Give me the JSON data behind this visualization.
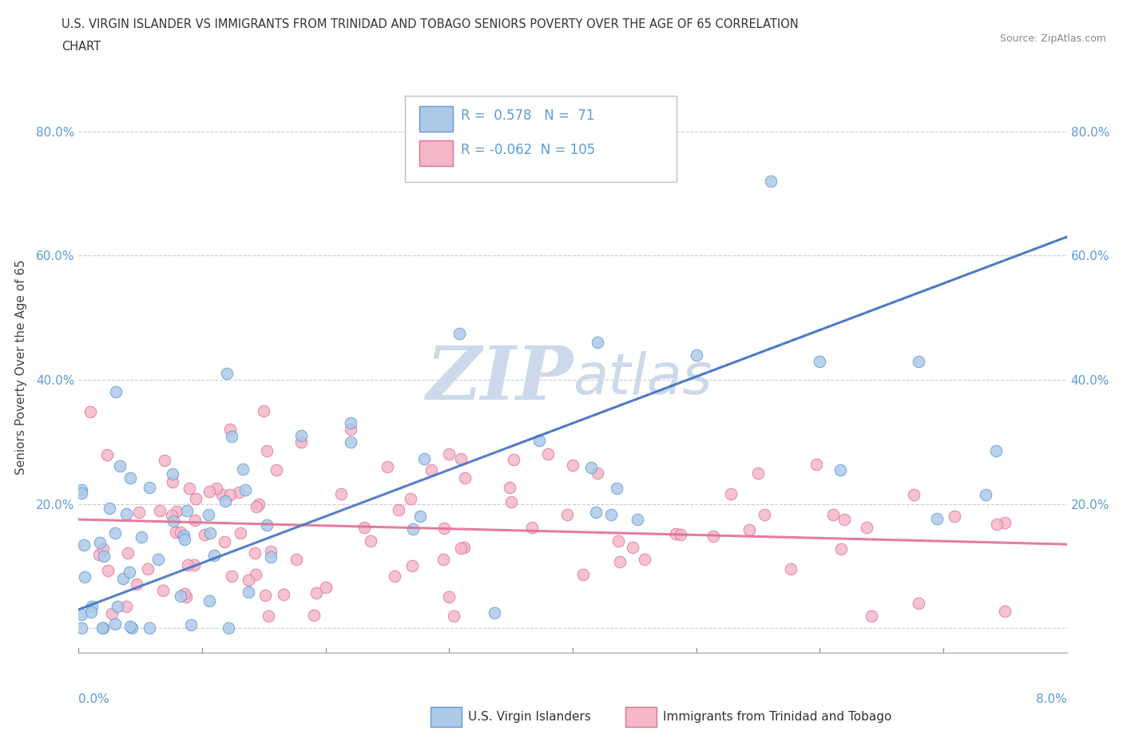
{
  "title_line1": "U.S. VIRGIN ISLANDER VS IMMIGRANTS FROM TRINIDAD AND TOBAGO SENIORS POVERTY OVER THE AGE OF 65 CORRELATION",
  "title_line2": "CHART",
  "source_text": "Source: ZipAtlas.com",
  "ylabel": "Seniors Poverty Over the Age of 65",
  "xlim": [
    0.0,
    0.08
  ],
  "ylim": [
    -0.04,
    0.88
  ],
  "yticks": [
    0.0,
    0.2,
    0.4,
    0.6,
    0.8
  ],
  "ytick_labels_left": [
    "",
    "20.0%",
    "40.0%",
    "60.0%",
    "80.0%"
  ],
  "ytick_labels_right": [
    "",
    "20.0%",
    "40.0%",
    "60.0%",
    "80.0%"
  ],
  "blue_R": 0.578,
  "blue_N": 71,
  "pink_R": -0.062,
  "pink_N": 105,
  "blue_fill": "#aec9e8",
  "blue_edge": "#5b9bd5",
  "pink_fill": "#f4b8c8",
  "pink_edge": "#e07090",
  "blue_line": "#4472c4",
  "pink_line": "#e07090",
  "watermark_color": "#ccd9ea",
  "grid_color": "#c0c0c0"
}
